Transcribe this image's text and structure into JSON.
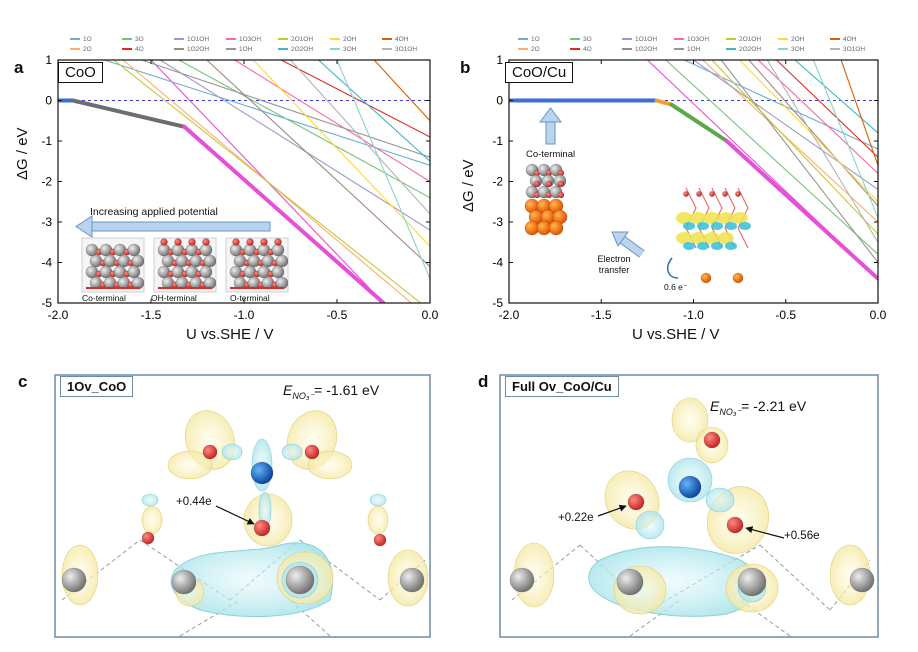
{
  "panels": {
    "a": {
      "letter": "a",
      "tag": "CoO",
      "ylabel": "ΔG / eV",
      "xlabel": "U vs.SHE / V",
      "arrow_text": "Increasing applied potential",
      "insets": [
        "Co-terminal",
        "OH-terminal",
        "O-terminal"
      ]
    },
    "b": {
      "letter": "b",
      "tag": "CoO/Cu",
      "ylabel": "ΔG / eV",
      "xlabel": "U vs.SHE / V",
      "inset_co": "Co-terminal",
      "inset_et": "Electron transfer",
      "charge": "0.6 e⁻"
    },
    "c": {
      "letter": "c",
      "tag": "1Ov_CoO",
      "energy_prefix": "E",
      "energy_sub": "NO₃⁻",
      "energy_value": "= -1.61 eV",
      "charge": "+0.44e"
    },
    "d": {
      "letter": "d",
      "tag": "Full Ov_CoO/Cu",
      "energy_prefix": "E",
      "energy_sub": "NO₃⁻",
      "energy_value": "= -2.21 eV",
      "charge_left": "+0.22e",
      "charge_right": "+0.56e"
    }
  },
  "legend": [
    {
      "label": "1O",
      "color": "#6baed6"
    },
    {
      "label": "2O",
      "color": "#fdae6b"
    },
    {
      "label": "3O",
      "color": "#74c476"
    },
    {
      "label": "4O",
      "color": "#de2d26"
    },
    {
      "label": "1O1OH",
      "color": "#9e9ac8"
    },
    {
      "label": "1O2OH",
      "color": "#a1887f"
    },
    {
      "label": "1O3OH",
      "color": "#f768a1"
    },
    {
      "label": "1OH",
      "color": "#969696"
    },
    {
      "label": "2O1OH",
      "color": "#c7c735"
    },
    {
      "label": "2O2OH",
      "color": "#41b6c4"
    },
    {
      "label": "2OH",
      "color": "#ffd92f"
    },
    {
      "label": "3OH",
      "color": "#8dd3c7"
    },
    {
      "label": "4OH",
      "color": "#d95f02"
    },
    {
      "label": "3O1OH",
      "color": "#b3b3b3"
    }
  ],
  "chart_data": [
    {
      "type": "line",
      "panel": "a",
      "title": "CoO",
      "xlabel": "U vs.SHE / V",
      "ylabel": "ΔG / eV",
      "xlim": [
        -2.0,
        0.0
      ],
      "ylim": [
        -5,
        1
      ],
      "xticks": [
        "-2.0",
        "-1.5",
        "-1.0",
        "-0.5",
        "0.0"
      ],
      "yticks": [
        "1",
        "0",
        "-1",
        "-2",
        "-3",
        "-4",
        "-5"
      ],
      "reference_line": 0,
      "highlight": [
        {
          "color": "#3b6fd6",
          "points": [
            [
              -2.0,
              0
            ],
            [
              -1.92,
              0
            ]
          ]
        },
        {
          "color": "#6d6d6d",
          "points": [
            [
              -1.92,
              0
            ],
            [
              -1.32,
              -0.65
            ]
          ]
        },
        {
          "color": "#e64fd8",
          "points": [
            [
              -1.32,
              -0.65
            ],
            [
              -0.25,
              -5.0
            ]
          ]
        }
      ],
      "series": [
        {
          "color": "#e64fd8",
          "points": [
            [
              -1.5,
              1
            ],
            [
              -0.25,
              -5
            ]
          ]
        },
        {
          "color": "#6baed6",
          "points": [
            [
              -1.75,
              1
            ],
            [
              0,
              -1.6
            ]
          ]
        },
        {
          "color": "#fdae6b",
          "points": [
            [
              -1.65,
              1
            ],
            [
              -0.1,
              -5
            ]
          ]
        },
        {
          "color": "#74c476",
          "points": [
            [
              -1.35,
              1
            ],
            [
              0,
              -2.4
            ]
          ]
        },
        {
          "color": "#de2d26",
          "points": [
            [
              -0.8,
              1
            ],
            [
              0,
              -0.9
            ]
          ]
        },
        {
          "color": "#9e9ac8",
          "points": [
            [
              -1.45,
              1
            ],
            [
              0,
              -3.2
            ]
          ]
        },
        {
          "color": "#a1887f",
          "points": [
            [
              -1.2,
              1
            ],
            [
              0,
              -4.1
            ]
          ]
        },
        {
          "color": "#f768a1",
          "points": [
            [
              -1.05,
              1
            ],
            [
              0,
              -2.0
            ]
          ]
        },
        {
          "color": "#969696",
          "points": [
            [
              -1.55,
              1
            ],
            [
              0,
              -1.4
            ]
          ]
        },
        {
          "color": "#c7c735",
          "points": [
            [
              -1.7,
              1
            ],
            [
              -0.05,
              -5
            ]
          ]
        },
        {
          "color": "#41b6c4",
          "points": [
            [
              -0.6,
              1
            ],
            [
              0,
              -1.5
            ]
          ]
        },
        {
          "color": "#ffd92f",
          "points": [
            [
              -0.95,
              1
            ],
            [
              0,
              -3.6
            ]
          ]
        },
        {
          "color": "#8dd3c7",
          "points": [
            [
              -0.5,
              1
            ],
            [
              0,
              -4.4
            ]
          ]
        },
        {
          "color": "#d95f02",
          "points": [
            [
              -0.3,
              1
            ],
            [
              0,
              -0.5
            ]
          ]
        },
        {
          "color": "#b3b3b3",
          "points": [
            [
              -0.75,
              1
            ],
            [
              0,
              -2.8
            ]
          ]
        }
      ]
    },
    {
      "type": "line",
      "panel": "b",
      "title": "CoO/Cu",
      "xlabel": "U vs.SHE / V",
      "ylabel": "ΔG / eV",
      "xlim": [
        -2.0,
        0.0
      ],
      "ylim": [
        -5,
        1
      ],
      "xticks": [
        "-2.0",
        "-1.5",
        "-1.0",
        "-0.5",
        "0.0"
      ],
      "yticks": [
        "1",
        "0",
        "-1",
        "-2",
        "-3",
        "-4",
        "-5"
      ],
      "reference_line": 0,
      "highlight": [
        {
          "color": "#3b6fd6",
          "points": [
            [
              -2.0,
              0
            ],
            [
              -1.2,
              0
            ]
          ]
        },
        {
          "color": "#f0a030",
          "points": [
            [
              -1.2,
              0
            ],
            [
              -1.12,
              -0.1
            ]
          ]
        },
        {
          "color": "#5aa84a",
          "points": [
            [
              -1.12,
              -0.1
            ],
            [
              -0.82,
              -1.0
            ]
          ]
        },
        {
          "color": "#e64fd8",
          "points": [
            [
              -0.82,
              -1.0
            ],
            [
              0,
              -4.4
            ]
          ]
        }
      ],
      "series": [
        {
          "color": "#e64fd8",
          "points": [
            [
              -1.25,
              1
            ],
            [
              0,
              -4.4
            ]
          ]
        },
        {
          "color": "#6baed6",
          "points": [
            [
              -1.05,
              1
            ],
            [
              0,
              -1.2
            ]
          ]
        },
        {
          "color": "#fdae6b",
          "points": [
            [
              -0.95,
              1
            ],
            [
              0,
              -3.0
            ]
          ]
        },
        {
          "color": "#74c476",
          "points": [
            [
              -1.15,
              1
            ],
            [
              0,
              -3.8
            ]
          ]
        },
        {
          "color": "#de2d26",
          "points": [
            [
              -0.55,
              1
            ],
            [
              0,
              -1.4
            ]
          ]
        },
        {
          "color": "#9e9ac8",
          "points": [
            [
              -1.0,
              1
            ],
            [
              0,
              -2.2
            ]
          ]
        },
        {
          "color": "#a1887f",
          "points": [
            [
              -0.7,
              1
            ],
            [
              0,
              -2.6
            ]
          ]
        },
        {
          "color": "#f768a1",
          "points": [
            [
              -0.65,
              1
            ],
            [
              0,
              -1.8
            ]
          ]
        },
        {
          "color": "#969696",
          "points": [
            [
              -0.85,
              1
            ],
            [
              0,
              -4.0
            ]
          ]
        },
        {
          "color": "#c7c735",
          "points": [
            [
              -0.9,
              1
            ],
            [
              0,
              -3.3
            ]
          ]
        },
        {
          "color": "#41b6c4",
          "points": [
            [
              -0.45,
              1
            ],
            [
              0,
              -0.8
            ]
          ]
        },
        {
          "color": "#ffd92f",
          "points": [
            [
              -0.75,
              1
            ],
            [
              0,
              -2.5
            ]
          ]
        },
        {
          "color": "#8dd3c7",
          "points": [
            [
              -0.35,
              1
            ],
            [
              0,
              -2.9
            ]
          ]
        },
        {
          "color": "#d95f02",
          "points": [
            [
              -0.2,
              1
            ],
            [
              0,
              -1.6
            ]
          ]
        },
        {
          "color": "#b3b3b3",
          "points": [
            [
              -0.6,
              1
            ],
            [
              0,
              -3.5
            ]
          ]
        }
      ]
    }
  ]
}
